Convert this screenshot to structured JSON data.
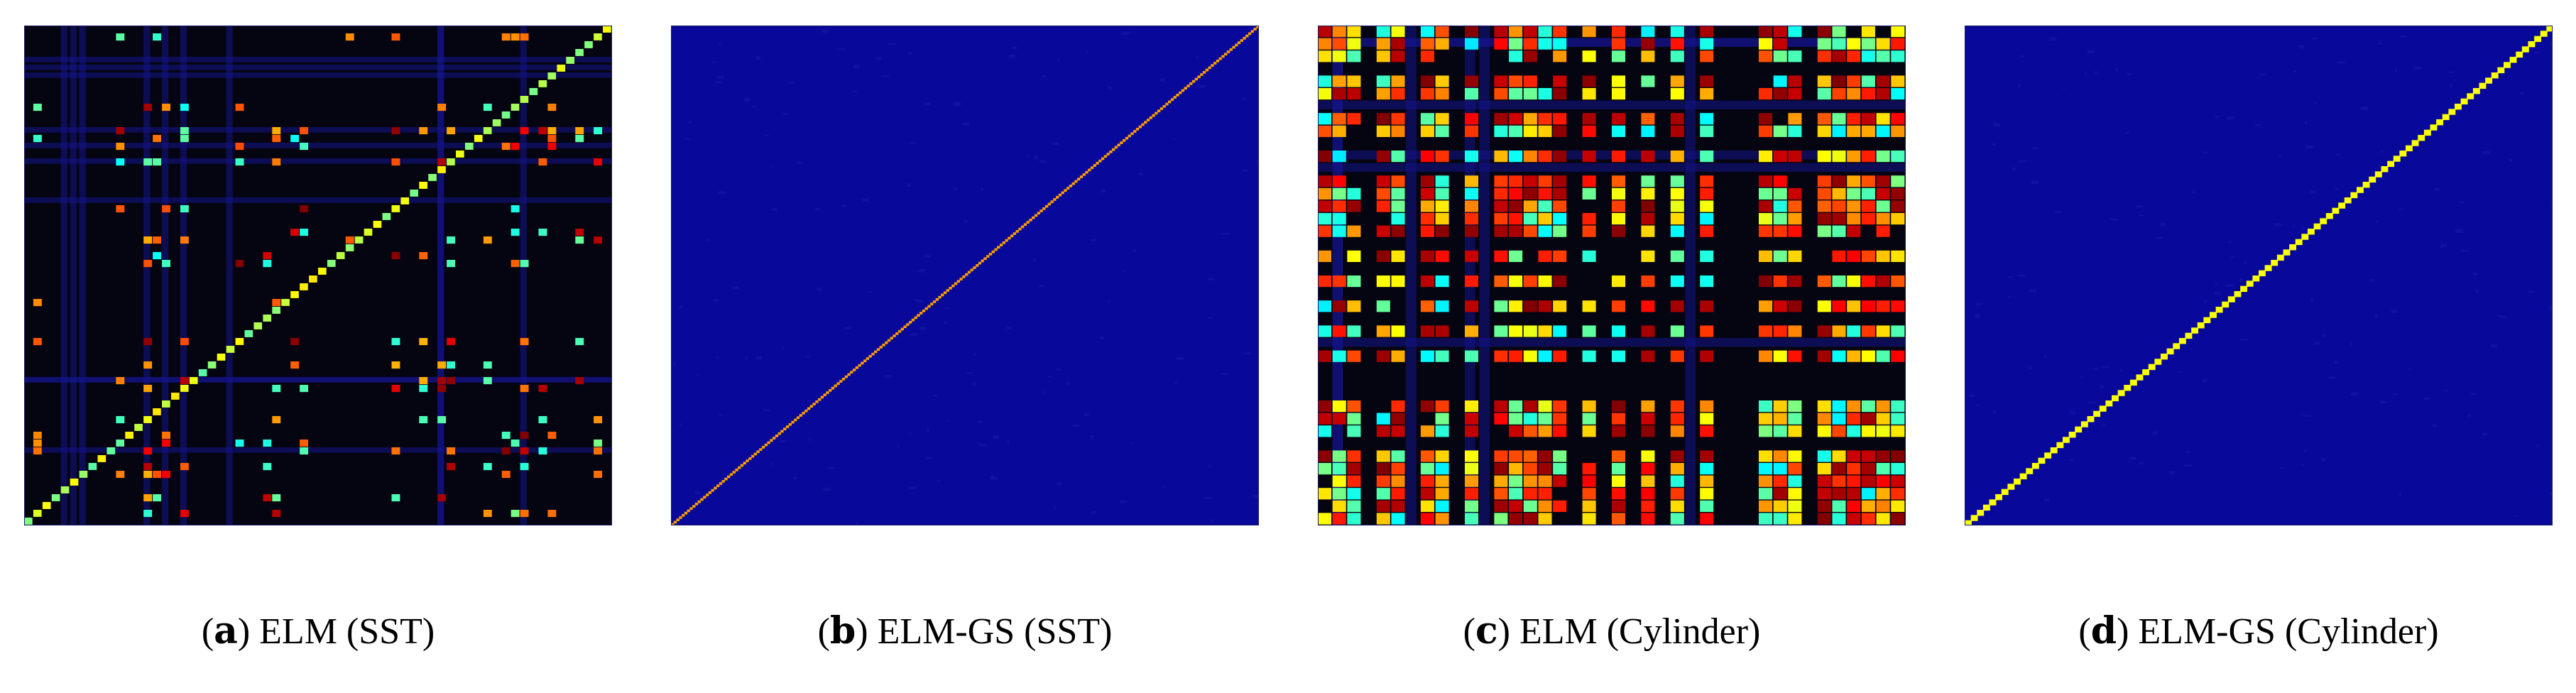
{
  "chart_data": [
    {
      "type": "heatmap",
      "panel_label": "a",
      "caption": "ELM (SST)",
      "pattern": "sparse-blocks",
      "cells": 64,
      "density": 0.14,
      "diagonal_visible": true,
      "diagonal_value": 0.55,
      "background_value": 0.0,
      "seed": 11
    },
    {
      "type": "heatmap",
      "panel_label": "b",
      "caption": "ELM-GS (SST)",
      "pattern": "diagonal-only",
      "cells": 220,
      "diagonal_visible": true,
      "diagonal_value": 0.72,
      "background_value": 0.0,
      "seed": 23
    },
    {
      "type": "heatmap",
      "panel_label": "c",
      "caption": "ELM (Cylinder)",
      "pattern": "dense-blocks",
      "cells": 40,
      "density": 0.42,
      "diagonal_visible": false,
      "background_value": 0.0,
      "seed": 37
    },
    {
      "type": "heatmap",
      "panel_label": "d",
      "caption": "ELM-GS (Cylinder)",
      "pattern": "diagonal-only",
      "cells": 96,
      "diagonal_visible": true,
      "diagonal_value": 0.62,
      "background_value": 0.0,
      "seed": 53
    }
  ],
  "colormap": "jet",
  "colors": {
    "background": "#08089a",
    "dark": "#050512"
  }
}
